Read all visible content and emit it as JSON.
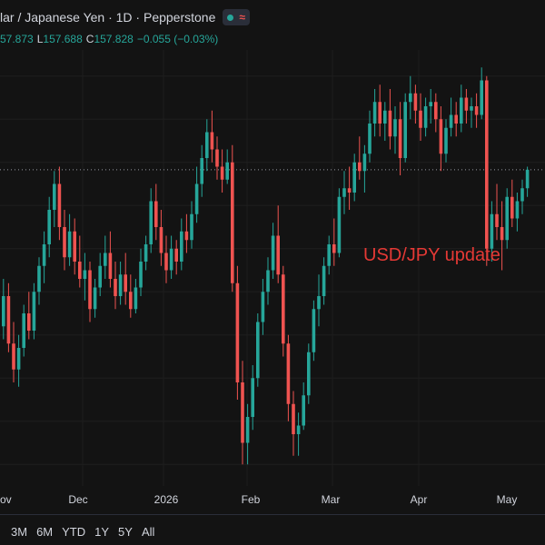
{
  "header": {
    "title": "lar / Japanese Yen · 1D · Pepperstone",
    "status_icon": "market-open-dot-icon",
    "realtime_icon": "wave-icon"
  },
  "ohlc": {
    "open": "57.873",
    "low_label": "L",
    "low": "157.688",
    "close_label": "C",
    "close": "157.828",
    "change": "−0.055 (−0.03%)"
  },
  "colors": {
    "up": "#26a69a",
    "down": "#ef5350",
    "background": "#131313",
    "annotation": "#e53935"
  },
  "range_buttons": [
    "3M",
    "6M",
    "YTD",
    "1Y",
    "5Y",
    "All"
  ],
  "chart_data": {
    "type": "candlestick",
    "annotation": "USD/JPY update",
    "x_ticks": [
      "ov",
      "Dec",
      "2026",
      "Feb",
      "Mar",
      "Apr",
      "May"
    ],
    "last_close": 157.828,
    "price_range": [
      150.5,
      160.5
    ],
    "candles": [
      [
        154.2,
        155.3,
        153.9,
        154.9
      ],
      [
        154.9,
        155.2,
        153.6,
        153.8
      ],
      [
        153.8,
        154.3,
        152.9,
        153.2
      ],
      [
        153.2,
        154.0,
        152.8,
        153.7
      ],
      [
        153.7,
        154.7,
        153.5,
        154.5
      ],
      [
        154.5,
        155.0,
        153.9,
        154.1
      ],
      [
        154.1,
        155.2,
        153.9,
        155.0
      ],
      [
        155.0,
        155.8,
        154.7,
        155.6
      ],
      [
        155.6,
        156.4,
        155.2,
        156.1
      ],
      [
        156.1,
        157.2,
        155.8,
        156.9
      ],
      [
        156.9,
        157.8,
        156.5,
        157.5
      ],
      [
        157.5,
        157.9,
        156.2,
        156.5
      ],
      [
        156.5,
        156.9,
        155.5,
        155.8
      ],
      [
        155.8,
        156.8,
        155.6,
        156.4
      ],
      [
        156.4,
        156.7,
        155.4,
        155.7
      ],
      [
        155.7,
        156.3,
        155.1,
        155.3
      ],
      [
        155.3,
        155.9,
        154.8,
        155.5
      ],
      [
        155.5,
        155.7,
        154.3,
        154.6
      ],
      [
        154.6,
        155.3,
        154.4,
        155.1
      ],
      [
        155.1,
        155.9,
        154.9,
        155.6
      ],
      [
        155.6,
        156.3,
        155.3,
        155.9
      ],
      [
        155.9,
        156.4,
        155.1,
        155.3
      ],
      [
        155.3,
        155.7,
        154.6,
        154.9
      ],
      [
        154.9,
        155.7,
        154.7,
        155.4
      ],
      [
        155.4,
        155.9,
        154.7,
        155.0
      ],
      [
        155.0,
        155.4,
        154.4,
        154.6
      ],
      [
        154.6,
        155.3,
        154.5,
        155.1
      ],
      [
        155.1,
        156.0,
        154.9,
        155.7
      ],
      [
        155.7,
        156.3,
        155.5,
        156.1
      ],
      [
        156.1,
        157.4,
        155.9,
        157.1
      ],
      [
        157.1,
        157.5,
        156.2,
        156.5
      ],
      [
        156.5,
        156.9,
        155.6,
        155.9
      ],
      [
        155.9,
        156.3,
        155.2,
        155.5
      ],
      [
        155.5,
        156.3,
        155.3,
        156.0
      ],
      [
        156.0,
        156.2,
        155.4,
        155.7
      ],
      [
        155.7,
        156.7,
        155.5,
        156.4
      ],
      [
        156.4,
        156.8,
        155.9,
        156.2
      ],
      [
        156.2,
        157.1,
        156.0,
        156.8
      ],
      [
        156.8,
        157.9,
        156.6,
        157.5
      ],
      [
        157.5,
        158.4,
        157.2,
        158.1
      ],
      [
        158.1,
        159.0,
        157.8,
        158.7
      ],
      [
        158.7,
        159.2,
        158.0,
        158.3
      ],
      [
        158.3,
        158.6,
        157.6,
        157.9
      ],
      [
        157.9,
        158.3,
        157.3,
        157.6
      ],
      [
        157.6,
        158.3,
        157.5,
        158.0
      ],
      [
        158.0,
        158.4,
        155.0,
        155.2
      ],
      [
        155.2,
        155.6,
        152.5,
        152.9
      ],
      [
        152.9,
        153.4,
        151.0,
        151.5
      ],
      [
        151.5,
        152.4,
        151.0,
        152.1
      ],
      [
        152.1,
        153.3,
        151.8,
        153.0
      ],
      [
        153.0,
        154.5,
        152.8,
        154.3
      ],
      [
        154.3,
        155.3,
        154.0,
        155.0
      ],
      [
        155.0,
        155.8,
        154.7,
        155.5
      ],
      [
        155.5,
        156.6,
        155.3,
        156.3
      ],
      [
        156.3,
        157.0,
        155.2,
        155.4
      ],
      [
        155.4,
        155.6,
        153.5,
        153.8
      ],
      [
        153.8,
        154.0,
        152.0,
        152.4
      ],
      [
        152.4,
        152.7,
        151.2,
        151.7
      ],
      [
        151.7,
        152.2,
        151.2,
        151.9
      ],
      [
        151.9,
        152.9,
        151.8,
        152.6
      ],
      [
        152.6,
        153.8,
        152.4,
        153.6
      ],
      [
        153.6,
        154.8,
        153.4,
        154.6
      ],
      [
        154.6,
        155.4,
        154.2,
        154.9
      ],
      [
        154.9,
        155.8,
        154.7,
        155.6
      ],
      [
        155.6,
        156.3,
        155.4,
        156.1
      ],
      [
        156.1,
        156.7,
        155.6,
        155.9
      ],
      [
        155.9,
        157.4,
        155.8,
        157.2
      ],
      [
        157.2,
        157.8,
        156.8,
        157.4
      ],
      [
        157.4,
        157.9,
        156.9,
        157.3
      ],
      [
        157.3,
        158.2,
        157.1,
        158.0
      ],
      [
        158.0,
        158.6,
        157.6,
        157.8
      ],
      [
        157.8,
        158.4,
        157.3,
        158.2
      ],
      [
        158.2,
        159.2,
        158.0,
        158.9
      ],
      [
        158.9,
        159.7,
        158.6,
        159.4
      ],
      [
        159.4,
        159.8,
        158.6,
        158.9
      ],
      [
        158.9,
        159.4,
        158.5,
        159.2
      ],
      [
        159.2,
        159.7,
        158.3,
        158.6
      ],
      [
        158.6,
        159.3,
        158.2,
        159.0
      ],
      [
        159.0,
        159.4,
        157.7,
        158.1
      ],
      [
        158.1,
        159.6,
        158.0,
        159.4
      ],
      [
        159.4,
        160.0,
        159.0,
        159.6
      ],
      [
        159.6,
        159.8,
        158.9,
        159.2
      ],
      [
        159.2,
        159.6,
        158.5,
        158.8
      ],
      [
        158.8,
        159.5,
        158.6,
        159.3
      ],
      [
        159.3,
        159.7,
        158.9,
        159.4
      ],
      [
        159.4,
        159.6,
        158.7,
        159.0
      ],
      [
        159.0,
        159.3,
        157.8,
        158.2
      ],
      [
        158.2,
        159.0,
        158.0,
        158.8
      ],
      [
        158.8,
        159.5,
        158.6,
        159.1
      ],
      [
        159.1,
        159.4,
        158.6,
        158.9
      ],
      [
        158.9,
        159.8,
        158.7,
        159.5
      ],
      [
        159.5,
        159.7,
        158.9,
        159.2
      ],
      [
        159.2,
        159.5,
        158.8,
        159.3
      ],
      [
        159.3,
        159.6,
        158.8,
        159.1
      ],
      [
        159.1,
        160.2,
        159.0,
        159.9
      ],
      [
        159.9,
        160.0,
        155.6,
        156.0
      ],
      [
        156.0,
        157.1,
        155.7,
        156.8
      ],
      [
        156.8,
        157.5,
        156.2,
        156.5
      ],
      [
        156.5,
        157.1,
        155.5,
        156.2
      ],
      [
        156.2,
        157.4,
        156.0,
        157.2
      ],
      [
        157.2,
        157.6,
        156.5,
        156.7
      ],
      [
        156.7,
        157.3,
        156.4,
        157.1
      ],
      [
        157.1,
        157.6,
        156.8,
        157.4
      ],
      [
        157.4,
        157.9,
        157.2,
        157.83
      ]
    ]
  }
}
